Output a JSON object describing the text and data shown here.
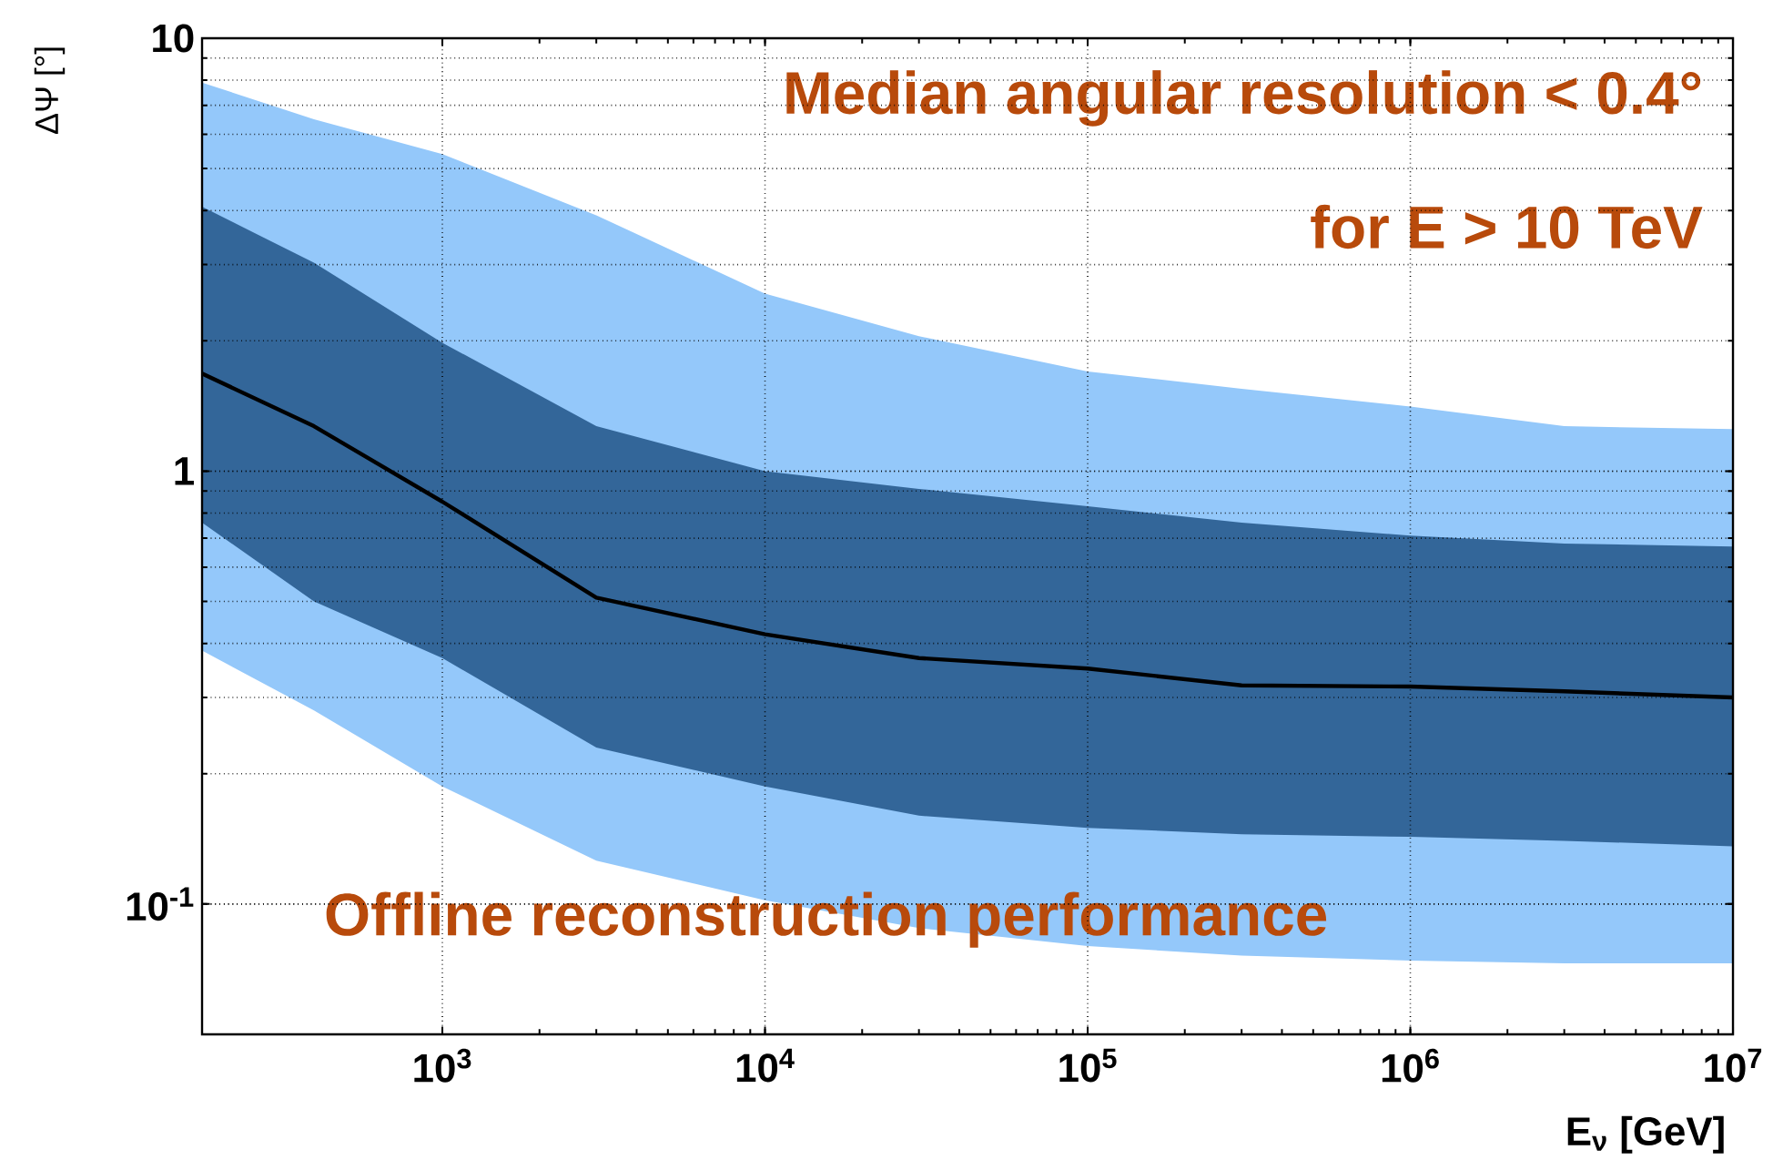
{
  "chart_data": {
    "type": "line",
    "xlabel": "E$_{ν}$ [GeV]",
    "ylabel": "ΔΨ [°]",
    "annotations": [
      "Median angular resolution < 0.4°",
      "for E > 10 TeV",
      "Offline reconstruction performance"
    ],
    "log": "xy",
    "grid": true,
    "marker": "none",
    "xlim": [
      180,
      10000000
    ],
    "ylim": [
      0.05,
      10
    ],
    "xticks": [
      {
        "value": 1000,
        "label": "10$^{3}$"
      },
      {
        "value": 10000,
        "label": "10$^{4}$"
      },
      {
        "value": 100000,
        "label": "10$^{5}$"
      },
      {
        "value": 1000000,
        "label": "10$^{6}$"
      },
      {
        "value": 10000000,
        "label": "10$^{7}$"
      }
    ],
    "yticks": [
      {
        "value": 0.1,
        "label": "10$^{-1}$"
      },
      1,
      10
    ],
    "x": [
      180,
      400,
      1000,
      3000,
      10000,
      30000,
      100000,
      300000,
      1000000,
      3000000,
      10000000
    ],
    "series": [
      {
        "color": "#94c8fa",
        "values": [
          null,
          null,
          null,
          null,
          null,
          null,
          null,
          null,
          null,
          null,
          null
        ],
        "lower": [
          0.385,
          0.28,
          0.187,
          0.126,
          0.102,
          0.088,
          0.08,
          0.076,
          0.074,
          0.073,
          0.073
        ],
        "upper": [
          7.9,
          6.5,
          5.4,
          3.9,
          2.57,
          2.05,
          1.7,
          1.55,
          1.41,
          1.27,
          1.25
        ]
      },
      {
        "color": "#000000",
        "values": [
          1.68,
          1.27,
          0.85,
          0.51,
          0.42,
          0.37,
          0.35,
          0.32,
          0.318,
          0.31,
          0.3
        ],
        "lower": [
          0.76,
          0.5,
          0.37,
          0.23,
          0.187,
          0.16,
          0.15,
          0.145,
          0.143,
          0.14,
          0.136
        ],
        "upper": [
          4.08,
          3.03,
          1.98,
          1.27,
          1.0,
          0.91,
          0.83,
          0.76,
          0.71,
          0.68,
          0.67
        ]
      }
    ]
  }
}
